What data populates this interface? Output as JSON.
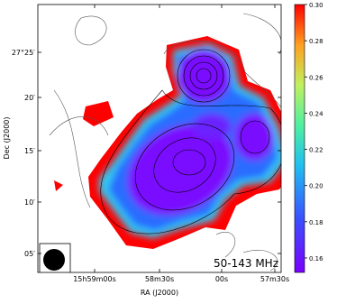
{
  "chart_data": {
    "type": "image",
    "annotation": "50-143 MHz",
    "xlabel": "RA (J2000)",
    "ylabel": "Dec (J2000)",
    "x_tick_labels": [
      "15h59m00s",
      "58m30s",
      "00s",
      "57m30s"
    ],
    "y_tick_labels": [
      "27°25′",
      "20′",
      "15′",
      "10′",
      "05′"
    ],
    "colorbar": {
      "lim": [
        0.152,
        0.3
      ],
      "ticks": [
        0.16,
        0.18,
        {
          "value": 0.2,
          "label": "0.20"
        },
        0.22,
        0.24,
        0.26,
        0.28,
        {
          "value": 0.3,
          "label": "0.30"
        }
      ]
    }
  }
}
